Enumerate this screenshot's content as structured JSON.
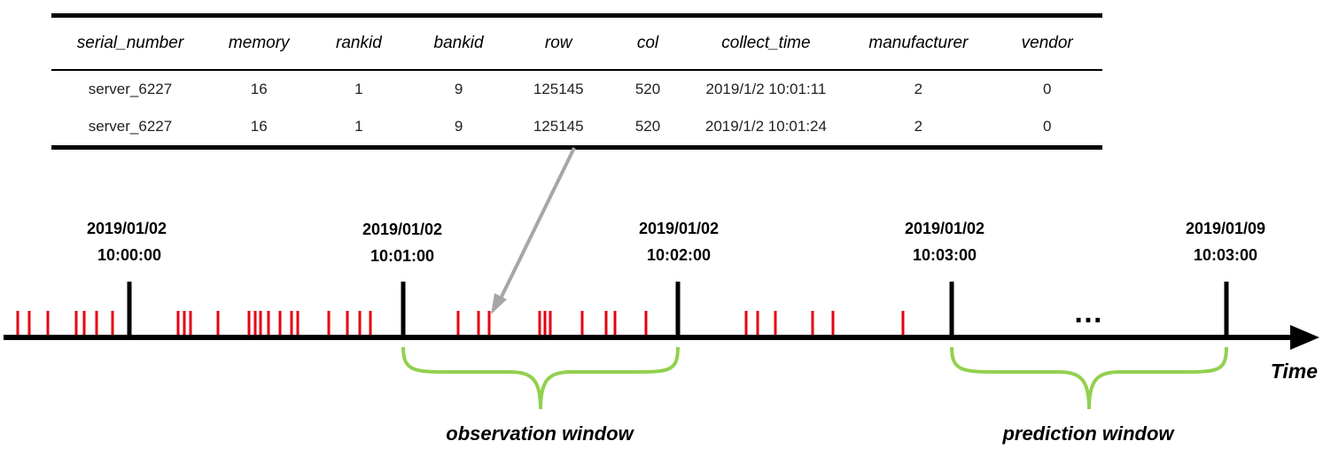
{
  "table": {
    "columns": [
      "serial_number",
      "memory",
      "rankid",
      "bankid",
      "row",
      "col",
      "collect_time",
      "manufacturer",
      "vendor"
    ],
    "rows": [
      [
        "server_6227",
        "16",
        "1",
        "9",
        "125145",
        "520",
        "2019/1/2 10:01:11",
        "2",
        "0"
      ],
      [
        "server_6227",
        "16",
        "1",
        "9",
        "125145",
        "520",
        "2019/1/2 10:01:24",
        "2",
        "0"
      ]
    ]
  },
  "timeline": {
    "axis_label": "Time",
    "ellipsis": "…",
    "marks": [
      {
        "date": "2019/01/02",
        "time": "10:00:00"
      },
      {
        "date": "2019/01/02",
        "time": "10:01:00"
      },
      {
        "date": "2019/01/02",
        "time": "10:02:00"
      },
      {
        "date": "2019/01/02",
        "time": "10:03:00"
      },
      {
        "date": "2019/01/09",
        "time": "10:03:00"
      }
    ],
    "observation_label": "observation window",
    "prediction_label": "prediction window"
  },
  "colors": {
    "event_tick": "#e60012",
    "window_brace": "#92d050",
    "arrow": "#a6a6a6",
    "axis": "#000000"
  }
}
